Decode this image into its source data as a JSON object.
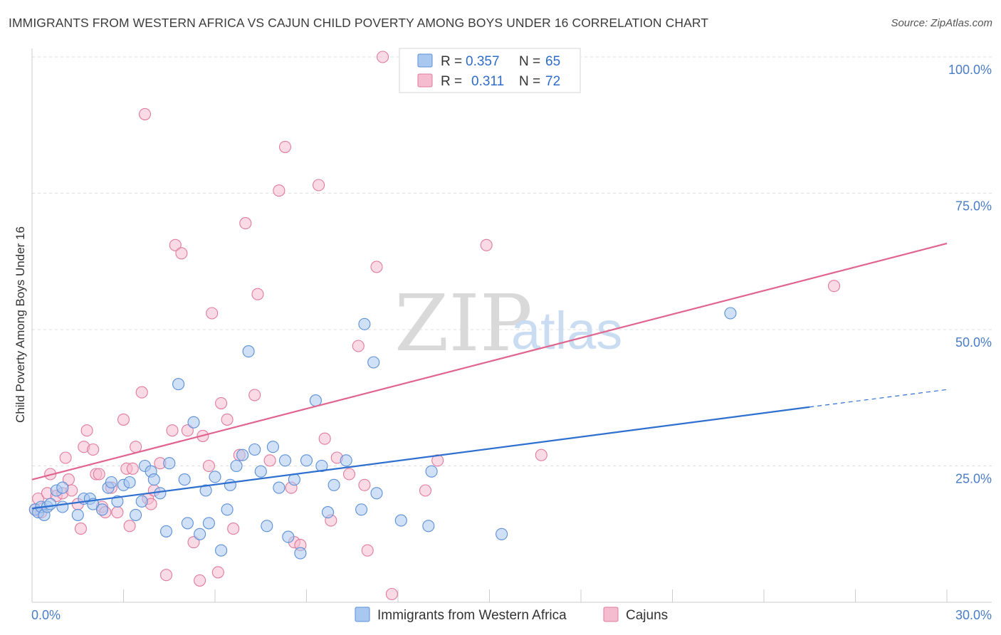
{
  "header": {
    "title": "IMMIGRANTS FROM WESTERN AFRICA VS CAJUN CHILD POVERTY AMONG BOYS UNDER 16 CORRELATION CHART",
    "source": "Source: ZipAtlas.com"
  },
  "watermark": {
    "zip": "ZIP",
    "atlas": "atlas"
  },
  "colors": {
    "blue_fill": "#a9c8f0",
    "blue_stroke": "#5b8fd6",
    "blue_line": "#2e6fd0",
    "pink_fill": "#f5bccf",
    "pink_stroke": "#e07a9e",
    "pink_line": "#e0648e",
    "tick_label": "#4a7cc7",
    "grid": "#dddddd"
  },
  "legend": {
    "rows": [
      {
        "r_label": "R =",
        "r_value": "0.357",
        "n_label": "N =",
        "n_value": "65"
      },
      {
        "r_label": "R =",
        "r_value": "0.311",
        "n_label": "N =",
        "n_value": "72"
      }
    ]
  },
  "chart_data": {
    "type": "scatter",
    "title": "IMMIGRANTS FROM WESTERN AFRICA VS CAJUN CHILD POVERTY AMONG BOYS UNDER 16 CORRELATION CHART",
    "xlabel": "",
    "ylabel": "Child Poverty Among Boys Under 16",
    "xlim": [
      0,
      30
    ],
    "ylim": [
      0,
      100
    ],
    "x_tick_labels": [
      "0.0%",
      "30.0%"
    ],
    "y_ticks": [
      25,
      50,
      75,
      100
    ],
    "y_tick_labels": [
      "25.0%",
      "50.0%",
      "75.0%",
      "100.0%"
    ],
    "legend_position": "top-center",
    "series": [
      {
        "name": "Immigrants from Western Africa",
        "color": "blue",
        "r": 0.357,
        "n": 65,
        "trend": {
          "x0": 0,
          "y0": 17.2,
          "x1": 25.5,
          "y1": 35.8,
          "dash_x1": 30,
          "dash_y1": 39.0
        },
        "points": [
          [
            0.1,
            17
          ],
          [
            0.2,
            16.5
          ],
          [
            0.3,
            17.5
          ],
          [
            0.4,
            16
          ],
          [
            0.5,
            17.5
          ],
          [
            0.6,
            18
          ],
          [
            0.8,
            20.5
          ],
          [
            1.0,
            21
          ],
          [
            1.0,
            17.5
          ],
          [
            1.5,
            16
          ],
          [
            1.7,
            19
          ],
          [
            1.9,
            19
          ],
          [
            2.0,
            18
          ],
          [
            2.3,
            17
          ],
          [
            2.5,
            21
          ],
          [
            2.6,
            22
          ],
          [
            2.8,
            18.5
          ],
          [
            3.0,
            21.5
          ],
          [
            3.2,
            22
          ],
          [
            3.4,
            16
          ],
          [
            3.6,
            18.5
          ],
          [
            3.7,
            25
          ],
          [
            3.9,
            24
          ],
          [
            4.0,
            22.5
          ],
          [
            4.2,
            20
          ],
          [
            4.4,
            13
          ],
          [
            4.5,
            25.5
          ],
          [
            4.8,
            40
          ],
          [
            5.0,
            22.5
          ],
          [
            5.1,
            14.5
          ],
          [
            5.3,
            33
          ],
          [
            5.5,
            12.5
          ],
          [
            5.7,
            20.5
          ],
          [
            5.8,
            14.5
          ],
          [
            6.0,
            23
          ],
          [
            6.2,
            9.5
          ],
          [
            6.4,
            17
          ],
          [
            6.5,
            21.5
          ],
          [
            6.7,
            25
          ],
          [
            6.9,
            27
          ],
          [
            7.1,
            46
          ],
          [
            7.3,
            28
          ],
          [
            7.5,
            24
          ],
          [
            7.7,
            14
          ],
          [
            7.9,
            28.5
          ],
          [
            8.1,
            21
          ],
          [
            8.3,
            26
          ],
          [
            8.4,
            12
          ],
          [
            8.6,
            22.5
          ],
          [
            8.8,
            9
          ],
          [
            9.0,
            26
          ],
          [
            9.3,
            37
          ],
          [
            9.5,
            25
          ],
          [
            9.7,
            16.5
          ],
          [
            9.9,
            21.5
          ],
          [
            10.3,
            26
          ],
          [
            10.8,
            17
          ],
          [
            10.9,
            51
          ],
          [
            11.2,
            44
          ],
          [
            11.3,
            20
          ],
          [
            12.1,
            15
          ],
          [
            13.0,
            14
          ],
          [
            13.1,
            24
          ],
          [
            15.4,
            12.5
          ],
          [
            22.9,
            53
          ]
        ]
      },
      {
        "name": "Cajuns",
        "color": "pink",
        "r": 0.311,
        "n": 72,
        "trend": {
          "x0": 0,
          "y0": 22.5,
          "x1": 30,
          "y1": 65.8
        },
        "points": [
          [
            0.1,
            17
          ],
          [
            0.2,
            19
          ],
          [
            0.3,
            16.5
          ],
          [
            0.5,
            20
          ],
          [
            0.6,
            23.5
          ],
          [
            0.8,
            19.5
          ],
          [
            1.0,
            20
          ],
          [
            1.1,
            26.5
          ],
          [
            1.2,
            22.5
          ],
          [
            1.3,
            20.5
          ],
          [
            1.5,
            18
          ],
          [
            1.6,
            13.5
          ],
          [
            1.7,
            28.5
          ],
          [
            1.8,
            31.5
          ],
          [
            2.0,
            28
          ],
          [
            2.1,
            23.5
          ],
          [
            2.2,
            23.5
          ],
          [
            2.3,
            17.5
          ],
          [
            2.4,
            16.5
          ],
          [
            2.6,
            21
          ],
          [
            2.8,
            16.5
          ],
          [
            3.0,
            33.5
          ],
          [
            3.1,
            24.5
          ],
          [
            3.2,
            14
          ],
          [
            3.3,
            24.5
          ],
          [
            3.4,
            28.5
          ],
          [
            3.6,
            38.5
          ],
          [
            3.7,
            89.5
          ],
          [
            3.8,
            19
          ],
          [
            3.9,
            18
          ],
          [
            4.0,
            20.5
          ],
          [
            4.2,
            25.5
          ],
          [
            4.4,
            5
          ],
          [
            4.6,
            31.5
          ],
          [
            4.7,
            65.5
          ],
          [
            4.9,
            64
          ],
          [
            5.1,
            31.5
          ],
          [
            5.3,
            11
          ],
          [
            5.5,
            4
          ],
          [
            5.6,
            30.5
          ],
          [
            5.8,
            25
          ],
          [
            5.9,
            53
          ],
          [
            6.1,
            5.5
          ],
          [
            6.2,
            36.5
          ],
          [
            6.4,
            33.5
          ],
          [
            6.6,
            13.5
          ],
          [
            6.8,
            27
          ],
          [
            7.0,
            69.5
          ],
          [
            7.3,
            38
          ],
          [
            7.4,
            56.5
          ],
          [
            7.8,
            26
          ],
          [
            8.1,
            75.5
          ],
          [
            8.3,
            83.5
          ],
          [
            8.5,
            21
          ],
          [
            8.6,
            11
          ],
          [
            8.8,
            10.5
          ],
          [
            9.4,
            76.5
          ],
          [
            9.6,
            30
          ],
          [
            9.8,
            15
          ],
          [
            10.0,
            26.5
          ],
          [
            10.4,
            23.5
          ],
          [
            10.7,
            47
          ],
          [
            10.9,
            21.5
          ],
          [
            11.0,
            9.5
          ],
          [
            11.3,
            61.5
          ],
          [
            11.5,
            100
          ],
          [
            11.8,
            1.5
          ],
          [
            12.9,
            20.5
          ],
          [
            13.3,
            26
          ],
          [
            14.9,
            65.5
          ],
          [
            16.7,
            27
          ],
          [
            26.3,
            58
          ]
        ]
      }
    ]
  },
  "bottom_legend": {
    "items": [
      {
        "label": "Immigrants from Western Africa"
      },
      {
        "label": "Cajuns"
      }
    ]
  }
}
